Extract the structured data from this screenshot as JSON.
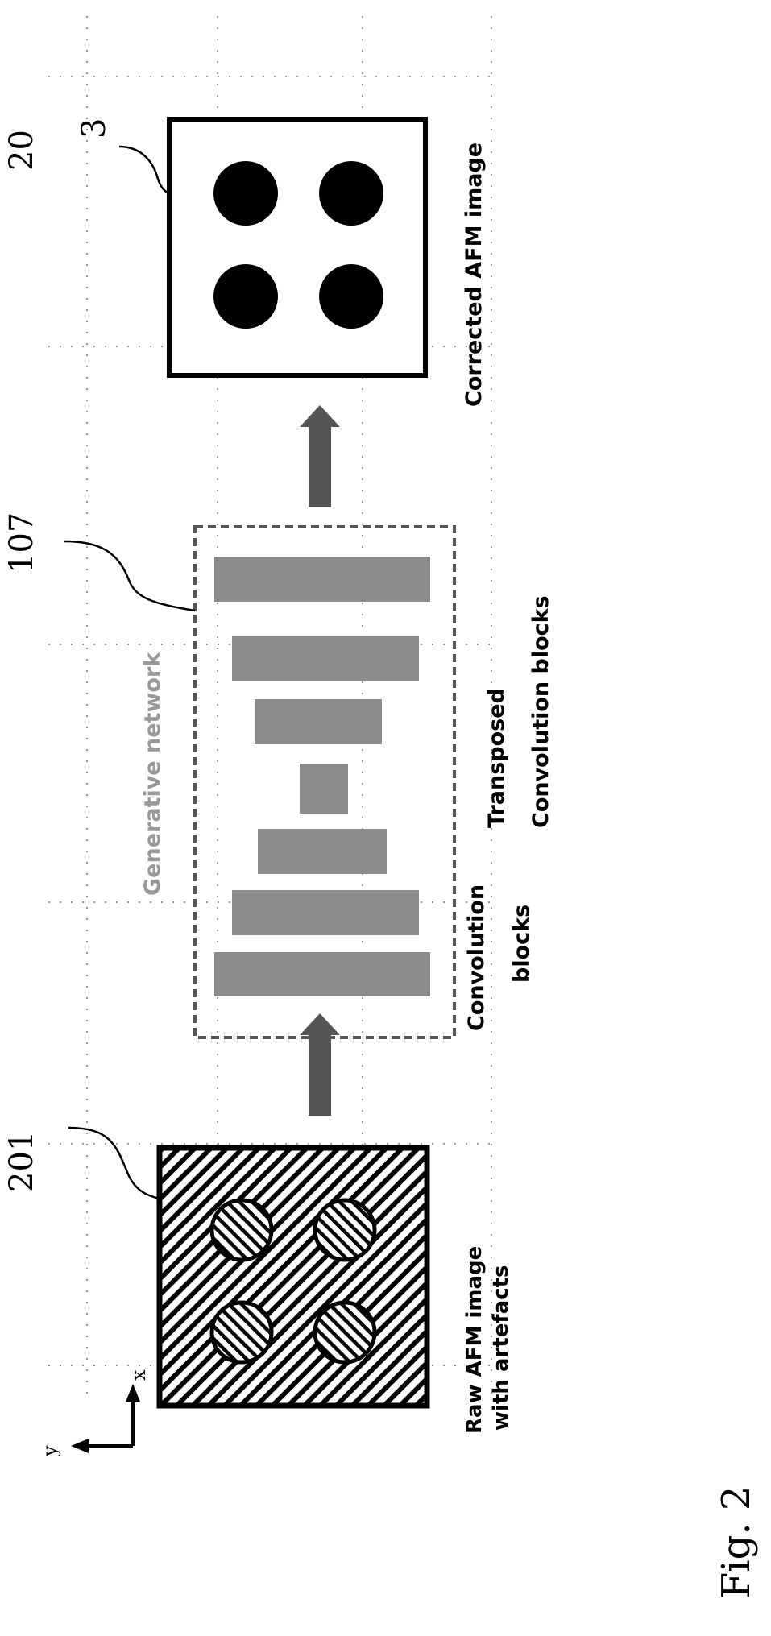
{
  "figure": {
    "label": "Fig. 2",
    "axes": {
      "y_label": "y",
      "x_label": "x"
    },
    "raw_image": {
      "ref": "201",
      "caption_line1": "Raw AFM image",
      "caption_line2": "with artefacts"
    },
    "network": {
      "ref": "107",
      "title": "Generative network",
      "conv_caption_line1": "Convolution",
      "conv_caption_line2": "blocks",
      "tconv_caption_line1": "Transposed",
      "tconv_caption_line2": "Convolution blocks"
    },
    "corrected_image": {
      "ref_outer": "20",
      "ref_inner": "3",
      "caption": "Corrected AFM image"
    },
    "colors": {
      "block_fill": "#8c8c8c",
      "arrow_fill": "#555555",
      "dashed_border": "#555555",
      "grid_dots": "#9a9a9a"
    }
  }
}
